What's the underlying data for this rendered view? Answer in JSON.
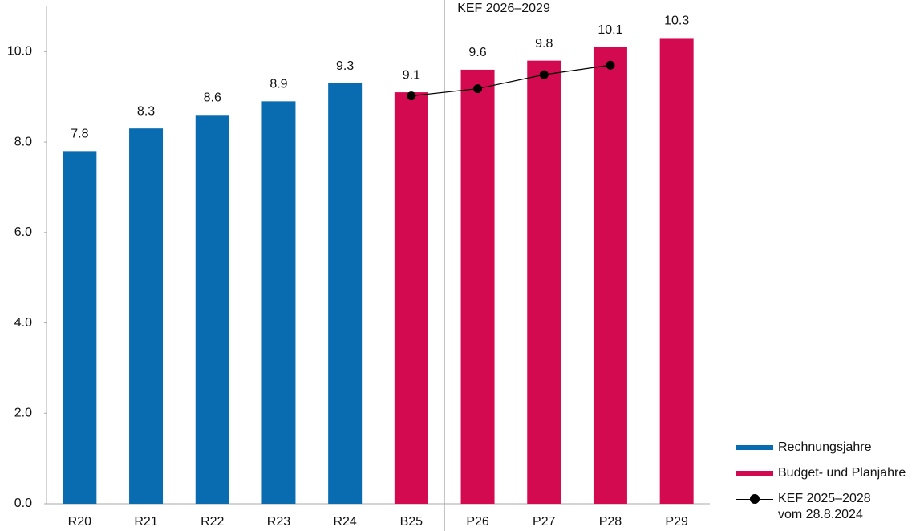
{
  "chart_data": {
    "type": "bar",
    "annotation": "KEF 2026–2029",
    "categories": [
      "R20",
      "R21",
      "R22",
      "R23",
      "R24",
      "B25",
      "P26",
      "P27",
      "P28",
      "P29"
    ],
    "series": [
      {
        "name": "Rechnungsjahre",
        "type": "bar",
        "color": "#0a6cb0",
        "values": [
          7.8,
          8.3,
          8.6,
          8.9,
          9.3,
          null,
          null,
          null,
          null,
          null
        ]
      },
      {
        "name": "Budget- und Planjahre",
        "type": "bar",
        "color": "#d30a50",
        "values": [
          null,
          null,
          null,
          null,
          null,
          9.1,
          9.6,
          9.8,
          10.1,
          10.3
        ]
      },
      {
        "name": "KEF 2025–2028 vom 28.8.2024",
        "type": "line",
        "color": "#000000",
        "values": [
          null,
          null,
          null,
          null,
          null,
          9.02,
          9.18,
          9.49,
          9.7,
          null
        ]
      }
    ],
    "ylim": [
      0,
      11
    ],
    "yticks": [
      {
        "value": 0,
        "label": "0.0"
      },
      {
        "value": 2,
        "label": "2.0"
      },
      {
        "value": 4,
        "label": "4.0"
      },
      {
        "value": 6,
        "label": "6.0"
      },
      {
        "value": 8,
        "label": "8.0"
      },
      {
        "value": 10,
        "label": "10.0"
      }
    ],
    "grid": false,
    "legend": "bottom-right"
  }
}
